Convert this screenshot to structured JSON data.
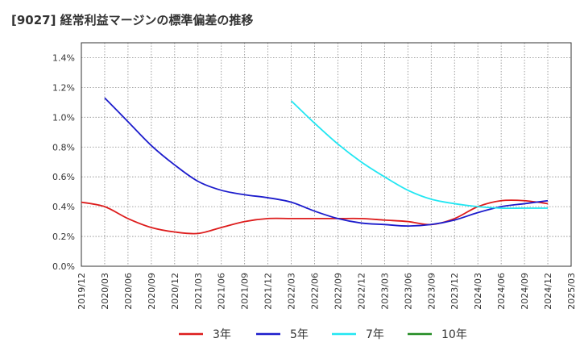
{
  "title": "[9027]  経常利益マージンの標準偏差の推移",
  "chart_data": {
    "type": "line",
    "title": "[9027]  経常利益マージンの標準偏差の推移",
    "xlabel": "",
    "ylabel": "",
    "x": [
      "2019/12",
      "2020/03",
      "2020/06",
      "2020/09",
      "2020/12",
      "2021/03",
      "2021/06",
      "2021/09",
      "2021/12",
      "2022/03",
      "2022/06",
      "2022/09",
      "2022/12",
      "2023/03",
      "2023/06",
      "2023/09",
      "2023/12",
      "2024/03",
      "2024/06",
      "2024/09",
      "2024/12",
      "2025/03"
    ],
    "yticks": [
      "0.0%",
      "0.2%",
      "0.4%",
      "0.6%",
      "0.8%",
      "1.0%",
      "1.2%",
      "1.4%"
    ],
    "ylim": [
      0,
      1.5
    ],
    "grid": true,
    "legend_position": "bottom",
    "series": [
      {
        "name": "3年",
        "color": "#dd1c1c",
        "values": [
          0.43,
          0.4,
          0.32,
          0.26,
          0.23,
          0.22,
          0.26,
          0.3,
          0.32,
          0.32,
          0.32,
          0.32,
          0.32,
          0.31,
          0.3,
          0.28,
          0.32,
          0.4,
          0.44,
          0.44,
          0.42,
          null
        ]
      },
      {
        "name": "5年",
        "color": "#1c1ccc",
        "values": [
          null,
          1.13,
          0.97,
          0.81,
          0.68,
          0.57,
          0.51,
          0.48,
          0.46,
          0.43,
          0.37,
          0.32,
          0.29,
          0.28,
          0.27,
          0.28,
          0.31,
          0.36,
          0.4,
          0.42,
          0.44,
          null
        ]
      },
      {
        "name": "7年",
        "color": "#22e6f2",
        "values": [
          null,
          null,
          null,
          null,
          null,
          null,
          null,
          null,
          null,
          1.11,
          0.96,
          0.82,
          0.7,
          0.6,
          0.51,
          0.45,
          0.42,
          0.4,
          0.39,
          0.39,
          0.39,
          null
        ]
      },
      {
        "name": "10年",
        "color": "#228b22",
        "values": [
          null,
          null,
          null,
          null,
          null,
          null,
          null,
          null,
          null,
          null,
          null,
          null,
          null,
          null,
          null,
          null,
          null,
          null,
          null,
          null,
          null,
          null
        ]
      }
    ]
  }
}
